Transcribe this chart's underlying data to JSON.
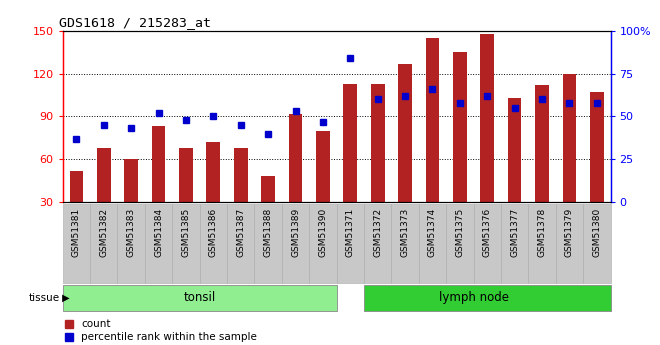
{
  "title": "GDS1618 / 215283_at",
  "categories": [
    "GSM51381",
    "GSM51382",
    "GSM51383",
    "GSM51384",
    "GSM51385",
    "GSM51386",
    "GSM51387",
    "GSM51388",
    "GSM51389",
    "GSM51390",
    "GSM51371",
    "GSM51372",
    "GSM51373",
    "GSM51374",
    "GSM51375",
    "GSM51376",
    "GSM51377",
    "GSM51378",
    "GSM51379",
    "GSM51380"
  ],
  "count_values": [
    52,
    68,
    60,
    83,
    68,
    72,
    68,
    48,
    92,
    80,
    113,
    113,
    127,
    145,
    135,
    148,
    103,
    112,
    120,
    107
  ],
  "percentile_values": [
    37,
    45,
    43,
    52,
    48,
    50,
    45,
    40,
    53,
    47,
    84,
    60,
    62,
    66,
    58,
    62,
    55,
    60,
    58,
    58
  ],
  "bar_color": "#B22222",
  "dot_color": "#0000CD",
  "ylim_left": [
    30,
    150
  ],
  "ylim_right": [
    0,
    100
  ],
  "yticks_left": [
    30,
    60,
    90,
    120,
    150
  ],
  "yticks_right": [
    0,
    25,
    50,
    75,
    100
  ],
  "ytick_labels_right": [
    "0",
    "25",
    "50",
    "75",
    "100%"
  ],
  "tonsil_color": "#90EE90",
  "lymph_color": "#32CD32",
  "tissue_label": "tissue",
  "tonsil_label": "tonsil",
  "lymph_label": "lymph node",
  "legend_count": "count",
  "legend_pct": "percentile rank within the sample",
  "bar_width": 0.5,
  "n_tonsil": 10,
  "n_lymph": 10,
  "grid_levels": [
    60,
    90,
    120
  ],
  "tick_bg_color": "#C8C8C8",
  "tick_border_color": "#AAAAAA"
}
